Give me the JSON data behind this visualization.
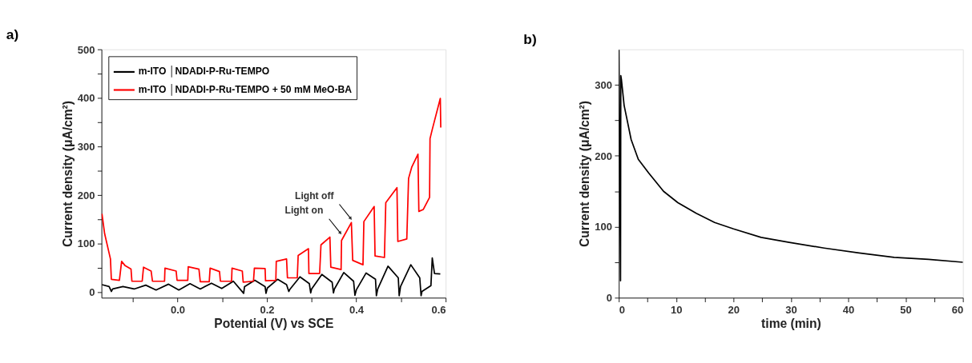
{
  "chart_data": [
    {
      "type": "line",
      "title": "a)",
      "xlabel": "Potential (V) vs SCE",
      "ylabel": "Current density (μA/cm²)",
      "xlim": [
        -0.17,
        0.6
      ],
      "ylim": [
        -12,
        500
      ],
      "xticks": [
        {
          "value": -0.1,
          "label": null
        },
        {
          "value": 0,
          "label": "0.0"
        },
        {
          "value": 0.1,
          "label": null
        },
        0.2,
        {
          "value": 0.3,
          "label": null
        },
        0.4,
        {
          "value": 0.5,
          "label": null
        },
        0.6
      ],
      "yticks": [
        0,
        {
          "value": 50,
          "label": null
        },
        100,
        {
          "value": 150,
          "label": null
        },
        200,
        {
          "value": 250,
          "label": null
        },
        300,
        {
          "value": 350,
          "label": null
        },
        400,
        {
          "value": 450,
          "label": null
        },
        500
      ],
      "legend": "top left",
      "grid": false,
      "series": [
        {
          "name": "m-ITO │NDADI-P-Ru-TEMPO",
          "color": "#000000",
          "x": [
            -0.169,
            -0.153,
            -0.148,
            -0.145,
            -0.122,
            -0.097,
            -0.071,
            -0.048,
            -0.02,
            0.003,
            0.028,
            0.051,
            0.076,
            0.099,
            0.125,
            0.148,
            0.15,
            0.173,
            0.196,
            0.198,
            0.201,
            0.224,
            0.244,
            0.249,
            0.252,
            0.274,
            0.295,
            0.298,
            0.3,
            0.323,
            0.346,
            0.349,
            0.351,
            0.372,
            0.394,
            0.397,
            0.4,
            0.422,
            0.443,
            0.445,
            0.448,
            0.471,
            0.494,
            0.496,
            0.499,
            0.522,
            0.542,
            0.545,
            0.547,
            0.567,
            0.57,
            0.575,
            0.588
          ],
          "values": [
            15,
            11,
            1,
            6,
            11,
            6,
            14,
            4,
            16,
            4,
            17,
            6,
            18,
            7,
            22,
            -3,
            11,
            24,
            11,
            -3,
            8,
            26,
            15,
            1,
            6,
            31,
            17,
            -2,
            6,
            36,
            20,
            -2,
            6,
            40,
            22,
            -7,
            4,
            39,
            26,
            -8,
            6,
            53,
            29,
            -8,
            11,
            56,
            29,
            -8,
            1,
            13,
            70,
            38,
            37
          ]
        },
        {
          "name": "m-ITO │NDADI-P-Ru-TEMPO + 50 mM MeO-BA",
          "color": "#ff0000",
          "x": [
            -0.169,
            -0.163,
            -0.15,
            -0.148,
            -0.13,
            -0.125,
            -0.117,
            -0.104,
            -0.102,
            -0.079,
            -0.076,
            -0.059,
            -0.056,
            -0.029,
            -0.028,
            -0.003,
            -0.001,
            0.023,
            0.024,
            0.048,
            0.051,
            0.071,
            0.073,
            0.094,
            0.096,
            0.121,
            0.122,
            0.145,
            0.147,
            0.17,
            0.172,
            0.196,
            0.197,
            0.22,
            0.221,
            0.244,
            0.246,
            0.268,
            0.27,
            0.293,
            0.294,
            0.318,
            0.321,
            0.341,
            0.343,
            0.366,
            0.367,
            0.389,
            0.392,
            0.415,
            0.417,
            0.44,
            0.442,
            0.463,
            0.466,
            0.491,
            0.493,
            0.513,
            0.517,
            0.524,
            0.538,
            0.54,
            0.55,
            0.564,
            0.565,
            0.57,
            0.588,
            0.589
          ],
          "values": [
            161,
            120,
            68,
            26,
            24,
            63,
            54,
            47,
            22,
            22,
            51,
            43,
            22,
            22,
            49,
            43,
            24,
            24,
            52,
            47,
            21,
            21,
            49,
            42,
            22,
            22,
            49,
            43,
            20,
            22,
            49,
            48,
            23,
            24,
            63,
            68,
            29,
            29,
            75,
            89,
            38,
            38,
            97,
            113,
            51,
            46,
            106,
            143,
            65,
            56,
            145,
            176,
            74,
            71,
            184,
            215,
            104,
            109,
            234,
            257,
            284,
            166,
            170,
            195,
            316,
            335,
            399,
            339
          ]
        }
      ],
      "annotations": [
        {
          "text": "Light off",
          "x": 0.387,
          "y": 152
        },
        {
          "text": "Light on",
          "x": 0.364,
          "y": 122
        }
      ]
    },
    {
      "type": "line",
      "title": "b)",
      "xlabel": "time (min)",
      "ylabel": "Current density (μA/cm²)",
      "xlim": [
        0,
        60
      ],
      "ylim": [
        0,
        350
      ],
      "xticks": [
        0,
        {
          "value": 5,
          "label": null
        },
        10,
        {
          "value": 15,
          "label": null
        },
        20,
        {
          "value": 25,
          "label": null
        },
        30,
        {
          "value": 35,
          "label": null
        },
        40,
        {
          "value": 45,
          "label": null
        },
        50,
        {
          "value": 55,
          "label": null
        },
        60
      ],
      "yticks": [
        0,
        {
          "value": 50,
          "label": null
        },
        100,
        {
          "value": 150,
          "label": null
        },
        200,
        {
          "value": 250,
          "label": null
        },
        300
      ],
      "grid": false,
      "series": [
        {
          "color": "#000000",
          "x": [
            0,
            0.3,
            0.35,
            0.45,
            0.93,
            1.34,
            2.15,
            3.4,
            5.2,
            7.8,
            10.3,
            13.5,
            16.7,
            20,
            24.8,
            29.7,
            35.8,
            41.9,
            48,
            54,
            60
          ],
          "values": [
            349,
            24,
            313,
            308,
            271,
            255,
            223,
            195,
            176,
            150,
            134,
            119,
            106,
            97,
            85,
            78,
            70,
            63,
            57,
            54,
            50
          ]
        }
      ]
    }
  ]
}
